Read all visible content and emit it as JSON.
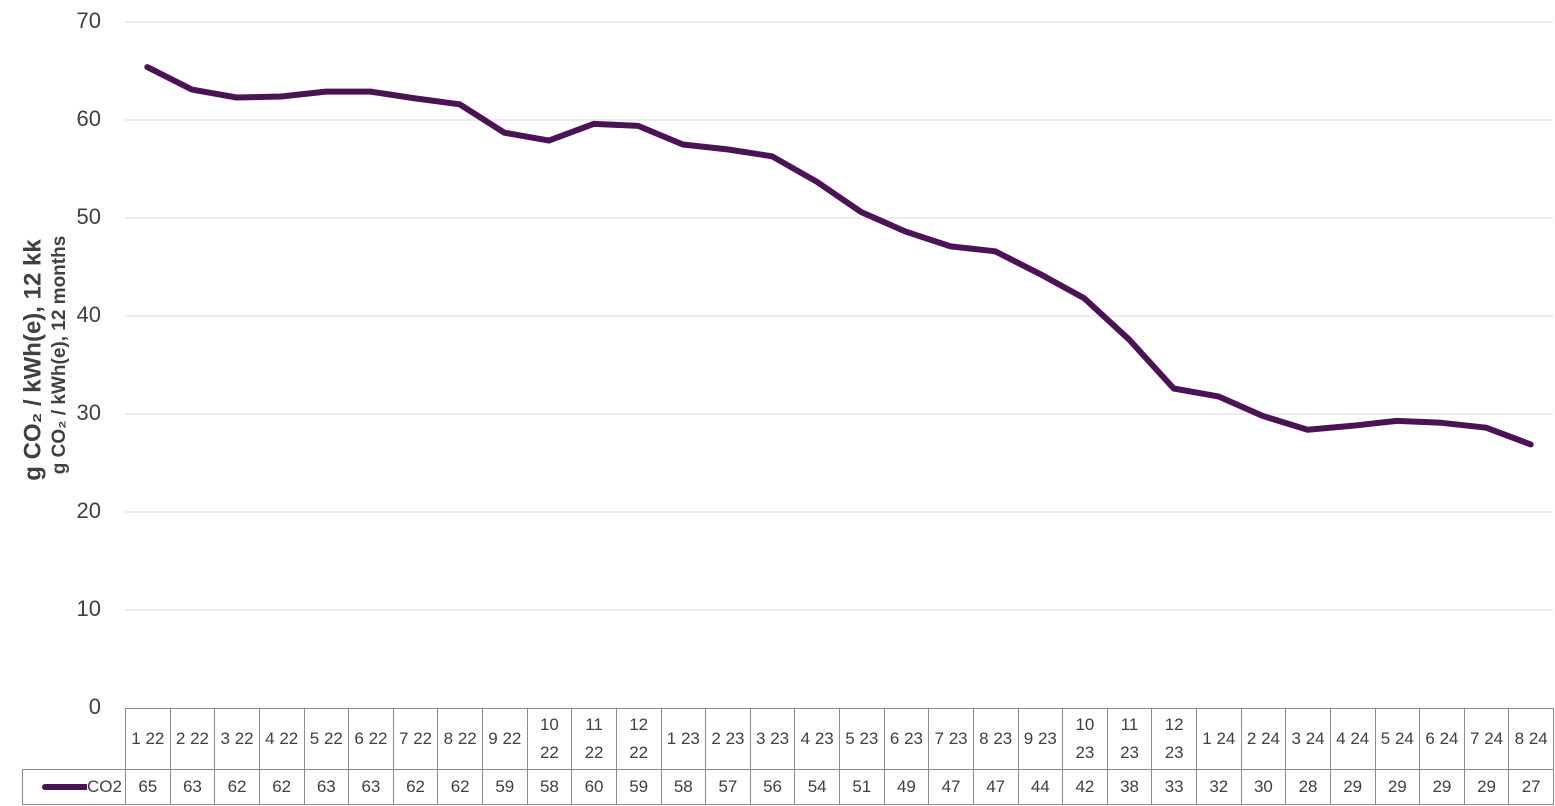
{
  "chart_data": {
    "type": "line",
    "y_title": "g CO₂ / kWh(e), 12 kk",
    "y_title_2": "g CO₂ / kWh(e), 12 months",
    "categories": [
      "1 22",
      "2 22",
      "3 22",
      "4 22",
      "5 22",
      "6 22",
      "7 22",
      "8 22",
      "9 22",
      "10 22",
      "11 22",
      "12 22",
      "1 23",
      "2 23",
      "3 23",
      "4 23",
      "5 23",
      "6 23",
      "7 23",
      "8 23",
      "9 23",
      "10 23",
      "11 23",
      "12 23",
      "1 24",
      "2 24",
      "3 24",
      "4 24",
      "5 24",
      "6 24",
      "7 24",
      "8 24"
    ],
    "series": [
      {
        "name": "CO2",
        "color": "#4b1355",
        "values": [
          65.4,
          63.1,
          62.3,
          62.4,
          62.9,
          62.9,
          62.2,
          61.6,
          58.7,
          57.9,
          59.6,
          59.4,
          57.5,
          57.0,
          56.3,
          53.7,
          50.6,
          48.6,
          47.1,
          46.6,
          44.3,
          41.8,
          37.6,
          32.6,
          31.8,
          29.8,
          28.4,
          28.8,
          29.3,
          29.1,
          28.6,
          26.9
        ],
        "value_labels": [
          "65",
          "63",
          "62",
          "62",
          "63",
          "63",
          "62",
          "62",
          "59",
          "58",
          "60",
          "59",
          "58",
          "57",
          "56",
          "54",
          "51",
          "49",
          "47",
          "47",
          "44",
          "42",
          "38",
          "33",
          "32",
          "30",
          "28",
          "29",
          "29",
          "29",
          "29",
          "27"
        ]
      }
    ],
    "ylim": [
      0,
      70
    ],
    "yticks": [
      0,
      10,
      20,
      30,
      40,
      50,
      60,
      70
    ],
    "grid": true
  }
}
